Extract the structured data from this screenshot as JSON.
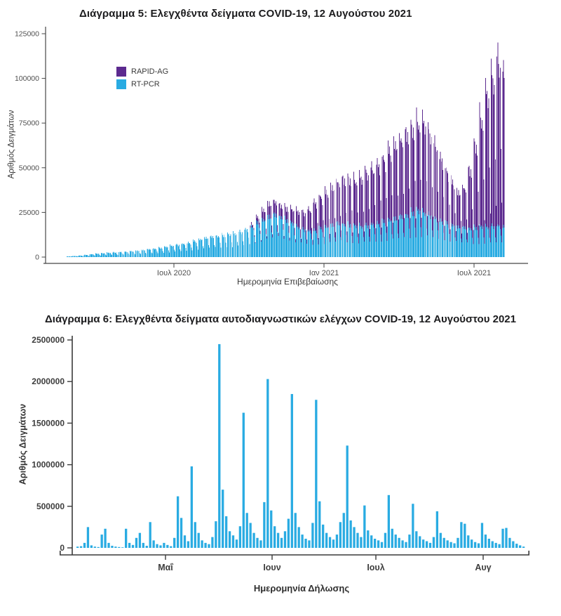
{
  "chart_data": [
    {
      "type": "bar",
      "stacked": true,
      "title": "Διάγραμμα 5: Ελεγχθέντα δείγματα COVID-19, 12 Αυγούστου 2021",
      "xlabel": "Ημερομηνία Επιβεβαίωσης",
      "ylabel": "Αριθμός Δειγμάτων",
      "ylim": [
        0,
        125000
      ],
      "y_ticks": [
        0,
        25000,
        50000,
        75000,
        100000,
        125000
      ],
      "x_tick_labels": [
        "Ιουλ 2020",
        "Ιαν 2021",
        "Ιουλ 2021"
      ],
      "x_start": "2020-02-24",
      "x_end": "2021-08-12",
      "grid": false,
      "legend_position": "inside-top-left",
      "legend": [
        {
          "label": "RAPID-AG",
          "color": "#5C2A8F"
        },
        {
          "label": "RT-PCR",
          "color": "#29ABE2"
        }
      ],
      "series": [
        {
          "name": "RT-PCR",
          "color": "#29ABE2",
          "weekly_peak_values": [
            400,
            600,
            900,
            1300,
            1700,
            2000,
            2300,
            2600,
            2800,
            3000,
            3200,
            3500,
            3800,
            4200,
            4600,
            5000,
            5500,
            6000,
            6800,
            7300,
            7800,
            8500,
            9500,
            10500,
            11500,
            12000,
            12500,
            13000,
            13500,
            14000,
            15000,
            16500,
            18000,
            20000,
            22000,
            24000,
            25000,
            24000,
            22000,
            20000,
            18000,
            16500,
            15500,
            16000,
            17000,
            18000,
            19000,
            20000,
            19500,
            19000,
            18500,
            18500,
            19000,
            19500,
            20000,
            21000,
            22000,
            23000,
            24000,
            25000,
            26500,
            27500,
            26500,
            25000,
            23000,
            21500,
            20000,
            19000,
            18000,
            17500,
            17000,
            17500,
            18000,
            18000,
            18500,
            18500,
            18000
          ]
        },
        {
          "name": "RAPID-AG",
          "color": "#5C2A8F",
          "weekly_peak_values": [
            0,
            0,
            0,
            0,
            0,
            0,
            0,
            0,
            0,
            0,
            0,
            0,
            0,
            0,
            0,
            0,
            0,
            0,
            0,
            0,
            0,
            0,
            0,
            0,
            0,
            0,
            0,
            0,
            0,
            0,
            0,
            0,
            1500,
            3500,
            6000,
            8000,
            8000,
            7000,
            7500,
            8500,
            9500,
            10500,
            13000,
            17000,
            19000,
            21000,
            23000,
            25000,
            27000,
            28000,
            27500,
            29000,
            32000,
            34000,
            36000,
            38000,
            42000,
            45000,
            47000,
            49000,
            51000,
            53000,
            54000,
            50000,
            45000,
            38000,
            32000,
            26000,
            21000,
            24000,
            35000,
            50000,
            65000,
            80000,
            90000,
            101000,
            94000
          ]
        }
      ],
      "weekday_profile": {
        "RT-PCR": [
          1.0,
          0.97,
          0.95,
          0.93,
          0.9,
          0.62,
          0.45
        ],
        "RAPID-AG": [
          1.0,
          0.96,
          0.92,
          0.9,
          0.86,
          0.5,
          0.22
        ]
      },
      "jitter_pattern": [
        1.03,
        0.94,
        1.05,
        0.98,
        0.91,
        1.04,
        0.96,
        1.0,
        0.93,
        1.02,
        0.97
      ],
      "n_days": 535
    },
    {
      "type": "bar",
      "title": "Διάγραμμα 6: Ελεγχθέντα δείγματα αυτοδιαγνωστικών ελέγχων COVID-19, 12 Αυγούστου 2021",
      "xlabel": "Ημερομηνία Δήλωσης",
      "ylabel": "Αριθμός Δειγμάτων",
      "ylim": [
        0,
        2500000
      ],
      "y_ticks": [
        0,
        500000,
        1000000,
        1500000,
        2000000,
        2500000
      ],
      "x_tick_labels": [
        "Μαΐ",
        "Ιουν",
        "Ιουλ",
        "Αυγ"
      ],
      "x_start": "2021-04-05",
      "x_end": "2021-08-12",
      "grid": false,
      "color": "#29ABE2",
      "values": [
        15000,
        20000,
        60000,
        250000,
        30000,
        15000,
        10000,
        160000,
        230000,
        60000,
        25000,
        15000,
        10000,
        5000,
        230000,
        60000,
        35000,
        120000,
        180000,
        60000,
        25000,
        310000,
        90000,
        45000,
        30000,
        60000,
        35000,
        20000,
        120000,
        620000,
        360000,
        150000,
        80000,
        980000,
        310000,
        180000,
        90000,
        60000,
        45000,
        130000,
        320000,
        2450000,
        700000,
        380000,
        200000,
        150000,
        100000,
        260000,
        1625000,
        420000,
        300000,
        180000,
        120000,
        90000,
        550000,
        2030000,
        450000,
        260000,
        180000,
        120000,
        200000,
        350000,
        1850000,
        420000,
        250000,
        160000,
        110000,
        90000,
        300000,
        1780000,
        560000,
        280000,
        180000,
        130000,
        100000,
        160000,
        310000,
        420000,
        1230000,
        330000,
        250000,
        180000,
        130000,
        510000,
        210000,
        150000,
        110000,
        90000,
        70000,
        180000,
        635000,
        230000,
        160000,
        120000,
        90000,
        70000,
        160000,
        530000,
        200000,
        140000,
        100000,
        80000,
        60000,
        130000,
        440000,
        180000,
        120000,
        90000,
        70000,
        55000,
        120000,
        310000,
        290000,
        150000,
        100000,
        70000,
        55000,
        300000,
        160000,
        110000,
        80000,
        60000,
        45000,
        230000,
        240000,
        120000,
        80000,
        50000,
        30000,
        15000
      ]
    }
  ]
}
